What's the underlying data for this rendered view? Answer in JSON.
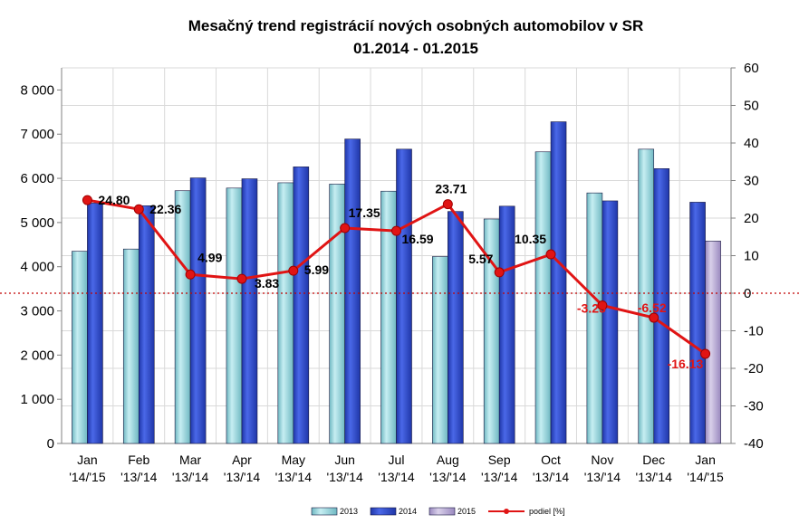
{
  "chart_data": {
    "type": "bar",
    "title": "Mesačný trend registrácií nových osobných automobilov v SR",
    "subtitle": "01.2014 - 01.2015",
    "categories": [
      [
        "Jan",
        "'14/'15"
      ],
      [
        "Feb",
        "'13/'14"
      ],
      [
        "Mar",
        "'13/'14"
      ],
      [
        "Apr",
        "'13/'14"
      ],
      [
        "May",
        "'13/'14"
      ],
      [
        "Jun",
        "'13/'14"
      ],
      [
        "Jul",
        "'13/'14"
      ],
      [
        "Aug",
        "'13/'14"
      ],
      [
        "Sep",
        "'13/'14"
      ],
      [
        "Oct",
        "'13/'14"
      ],
      [
        "Nov",
        "'13/'14"
      ],
      [
        "Dec",
        "'13/'14"
      ],
      [
        "Jan",
        "'14/'15"
      ]
    ],
    "series": [
      {
        "name": "2013",
        "axis": "left",
        "kind": "bar",
        "color": "#8ecfd6",
        "values": [
          4350,
          4400,
          5720,
          5780,
          5900,
          5870,
          5710,
          4230,
          5080,
          6600,
          5670,
          6660,
          null
        ]
      },
      {
        "name": "2014",
        "axis": "left",
        "kind": "bar",
        "color": "#2a44c4",
        "values": [
          5440,
          5380,
          6010,
          5990,
          6260,
          6890,
          6660,
          5250,
          5370,
          7280,
          5490,
          6220,
          5460
        ]
      },
      {
        "name": "2015",
        "axis": "left",
        "kind": "bar",
        "color": "#b5a7cf",
        "values": [
          null,
          null,
          null,
          null,
          null,
          null,
          null,
          null,
          null,
          null,
          null,
          null,
          4580
        ]
      },
      {
        "name": "podiel [%]",
        "axis": "right",
        "kind": "line",
        "color": "#e01414",
        "values": [
          24.8,
          22.36,
          4.99,
          3.83,
          5.99,
          17.35,
          16.59,
          23.71,
          5.57,
          10.35,
          -3.25,
          -6.52,
          -16.13
        ],
        "labels": [
          "24.80",
          "22.36",
          "4.99",
          "3.83",
          "5.99",
          "17.35",
          "16.59",
          "23.71",
          "5.57",
          "10.35",
          "-3.25",
          "-6.52",
          "-16.13"
        ]
      }
    ],
    "y_left": {
      "min": 0,
      "max": 8500,
      "ticks": [
        0,
        1000,
        2000,
        3000,
        4000,
        5000,
        6000,
        7000,
        8000
      ],
      "tick_labels": [
        "0",
        "1 000",
        "2 000",
        "3 000",
        "4 000",
        "5 000",
        "6 000",
        "7 000",
        "8 000"
      ]
    },
    "y_right": {
      "min": -40,
      "max": 60,
      "ticks": [
        -40,
        -30,
        -20,
        -10,
        0,
        10,
        20,
        30,
        40,
        50,
        60
      ],
      "tick_labels": [
        "-40",
        "-30",
        "-20",
        "-10",
        "0",
        "10",
        "20",
        "30",
        "40",
        "50",
        "60"
      ]
    },
    "grid": true,
    "legend": "bottom",
    "zero_reference_line": {
      "axis": "right",
      "value": 0,
      "style": "dotted",
      "color": "#c00000"
    }
  }
}
